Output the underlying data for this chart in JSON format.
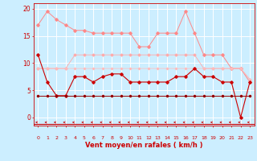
{
  "x": [
    0,
    1,
    2,
    3,
    4,
    5,
    6,
    7,
    8,
    9,
    10,
    11,
    12,
    13,
    14,
    15,
    16,
    17,
    18,
    19,
    20,
    21,
    22,
    23
  ],
  "series": [
    {
      "name": "rafales_max",
      "color": "#ff8888",
      "linewidth": 0.7,
      "marker": "D",
      "markersize": 1.8,
      "values": [
        17,
        19.5,
        18,
        17,
        16,
        16,
        15.5,
        15.5,
        15.5,
        15.5,
        15.5,
        13,
        13,
        15.5,
        15.5,
        15.5,
        19.5,
        15.5,
        11.5,
        11.5,
        11.5,
        9,
        9,
        6.5
      ]
    },
    {
      "name": "rafales_mid1",
      "color": "#ffaaaa",
      "linewidth": 0.6,
      "marker": "D",
      "markersize": 1.5,
      "values": [
        9,
        9,
        9,
        9,
        11.5,
        11.5,
        11.5,
        11.5,
        11.5,
        11.5,
        11.5,
        11.5,
        11.5,
        11.5,
        11.5,
        11.5,
        11.5,
        11.5,
        9,
        9,
        9,
        9,
        9,
        7
      ]
    },
    {
      "name": "rafales_mid2",
      "color": "#ffbbbb",
      "linewidth": 0.5,
      "marker": "D",
      "markersize": 1.2,
      "values": [
        9,
        9,
        9,
        9,
        9,
        9,
        9,
        9,
        9,
        9,
        9,
        9,
        9,
        9,
        9,
        9,
        9,
        9,
        9,
        9,
        9,
        9,
        9,
        7
      ]
    },
    {
      "name": "vent_main",
      "color": "#cc0000",
      "linewidth": 0.8,
      "marker": "D",
      "markersize": 1.8,
      "values": [
        11.5,
        6.5,
        4,
        4,
        7.5,
        7.5,
        6.5,
        7.5,
        8,
        8,
        6.5,
        6.5,
        6.5,
        6.5,
        6.5,
        7.5,
        7.5,
        9,
        7.5,
        7.5,
        6.5,
        6.5,
        0,
        6.5
      ]
    },
    {
      "name": "vent_low1",
      "color": "#cc0000",
      "linewidth": 0.6,
      "marker": "D",
      "markersize": 1.3,
      "values": [
        4,
        4,
        4,
        4,
        4,
        4,
        4,
        4,
        4,
        4,
        4,
        4,
        4,
        4,
        4,
        4,
        4,
        4,
        4,
        4,
        4,
        4,
        4,
        4
      ]
    },
    {
      "name": "vent_low3",
      "color": "#880000",
      "linewidth": 0.5,
      "marker": "D",
      "markersize": 1.0,
      "values": [
        4,
        4,
        4,
        4,
        4,
        4,
        4,
        4,
        4,
        4,
        4,
        4,
        4,
        4,
        4,
        4,
        4,
        4,
        4,
        4,
        4,
        4,
        4,
        4
      ]
    }
  ],
  "yticks": [
    0,
    5,
    10,
    15,
    20
  ],
  "xtick_labels": [
    "0",
    "1",
    "2",
    "3",
    "4",
    "5",
    "6",
    "7",
    "8",
    "9",
    "10",
    "11",
    "12",
    "13",
    "14",
    "15",
    "16",
    "17",
    "18",
    "19",
    "20",
    "21",
    "22",
    "23"
  ],
  "xlabel": "Vent moyen/en rafales ( km/h )",
  "ylim": [
    -1.5,
    21
  ],
  "xlim": [
    -0.5,
    23.5
  ],
  "bg_color": "#cceeff",
  "grid_color": "#ffffff",
  "axis_color": "#cc0000",
  "label_color": "#cc0000"
}
